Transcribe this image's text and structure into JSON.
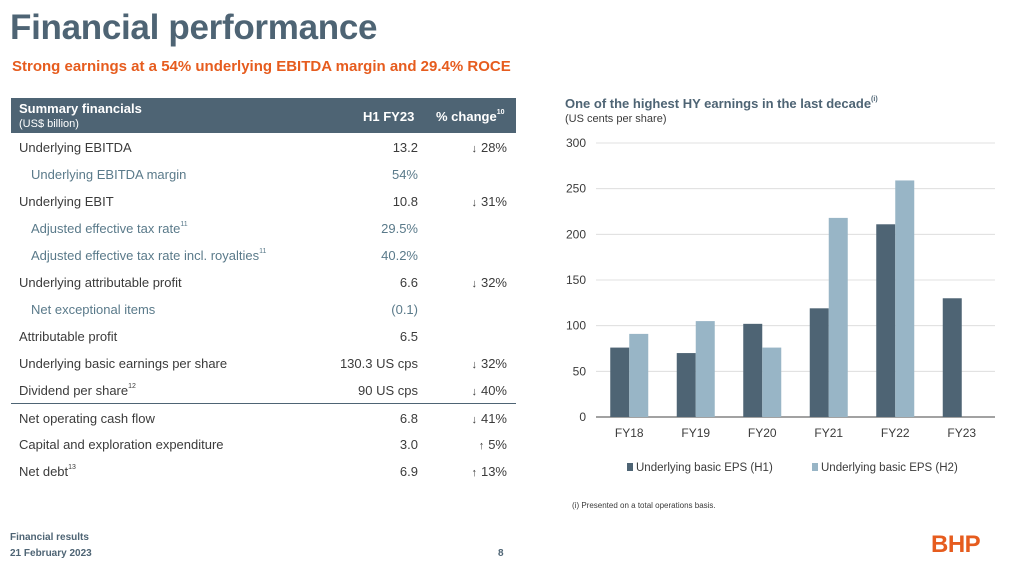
{
  "page": {
    "title": "Financial performance",
    "subtitle": "Strong earnings at a 54% underlying EBITDA margin and 29.4% ROCE"
  },
  "table": {
    "header_label": "Summary financials",
    "header_sub": "(US$ billion)",
    "col1": "H1 FY23",
    "col2": "% change",
    "col2_sup": "10",
    "rows": [
      {
        "label": "Underlying EBITDA",
        "sup": "",
        "value": "13.2",
        "change": "28%",
        "dir": "down",
        "sub": false,
        "divider": false
      },
      {
        "label": "Underlying EBITDA margin",
        "sup": "",
        "value": "54%",
        "change": "",
        "dir": "",
        "sub": true,
        "divider": false
      },
      {
        "label": "Underlying EBIT",
        "sup": "",
        "value": "10.8",
        "change": "31%",
        "dir": "down",
        "sub": false,
        "divider": false
      },
      {
        "label": "Adjusted effective tax rate",
        "sup": "11",
        "value": "29.5%",
        "change": "",
        "dir": "",
        "sub": true,
        "divider": false
      },
      {
        "label": "Adjusted effective tax rate incl. royalties",
        "sup": "11",
        "value": "40.2%",
        "change": "",
        "dir": "",
        "sub": true,
        "divider": false
      },
      {
        "label": "Underlying attributable profit",
        "sup": "",
        "value": "6.6",
        "change": "32%",
        "dir": "down",
        "sub": false,
        "divider": false
      },
      {
        "label": "Net exceptional items",
        "sup": "",
        "value": "(0.1)",
        "change": "",
        "dir": "",
        "sub": true,
        "divider": false
      },
      {
        "label": "Attributable profit",
        "sup": "",
        "value": "6.5",
        "change": "",
        "dir": "",
        "sub": false,
        "divider": false
      },
      {
        "label": "Underlying basic earnings per share",
        "sup": "",
        "value": "130.3 US cps",
        "change": "32%",
        "dir": "down",
        "sub": false,
        "divider": false
      },
      {
        "label": "Dividend per share",
        "sup": "12",
        "value": "90 US cps",
        "change": "40%",
        "dir": "down",
        "sub": false,
        "divider": false
      },
      {
        "label": "Net operating cash flow",
        "sup": "",
        "value": "6.8",
        "change": "41%",
        "dir": "down",
        "sub": false,
        "divider": true
      },
      {
        "label": "Capital and exploration expenditure",
        "sup": "",
        "value": "3.0",
        "change": "5%",
        "dir": "up",
        "sub": false,
        "divider": false
      },
      {
        "label": "Net debt",
        "sup": "13",
        "value": "6.9",
        "change": "13%",
        "dir": "up",
        "sub": false,
        "divider": false
      }
    ]
  },
  "chart_title": "One of the highest HY earnings in the last decade",
  "chart_title_sup": "(i)",
  "chart_subtitle": "(US cents per share)",
  "chart_footnote": "(i) Presented on a total operations basis.",
  "chart_data": {
    "type": "bar",
    "categories": [
      "FY18",
      "FY19",
      "FY20",
      "FY21",
      "FY22",
      "FY23"
    ],
    "series": [
      {
        "name": "Underlying basic EPS (H1)",
        "values": [
          76,
          70,
          102,
          119,
          211,
          130
        ],
        "color": "#4e6474"
      },
      {
        "name": "Underlying basic EPS (H2)",
        "values": [
          91,
          105,
          76,
          218,
          259,
          null
        ],
        "color": "#98b5c6"
      }
    ],
    "yticks": [
      0,
      50,
      100,
      150,
      200,
      250,
      300
    ],
    "ylim": [
      0,
      300
    ],
    "legend": "bottom",
    "grid": true
  },
  "footer": {
    "line1": "Financial results",
    "line2": "21 February 2023",
    "page_number": "8",
    "logo": "BHP"
  },
  "colors": {
    "primary": "#4e6474",
    "accent": "#e65c1e",
    "light": "#98b5c6"
  }
}
